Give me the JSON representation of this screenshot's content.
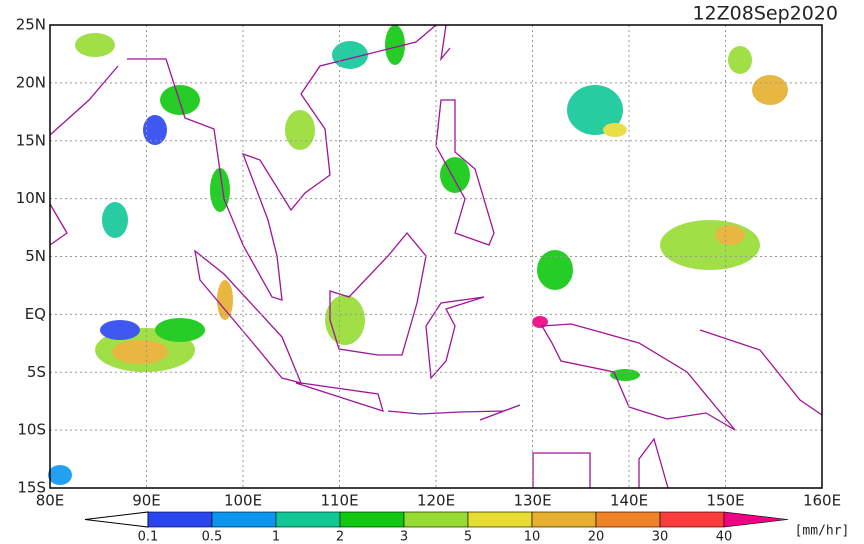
{
  "title": "12Z08Sep2020",
  "map": {
    "x_labels": [
      "80E",
      "90E",
      "100E",
      "110E",
      "120E",
      "130E",
      "140E",
      "150E",
      "160E"
    ],
    "y_labels": [
      "25N",
      "20N",
      "15N",
      "10N",
      "5N",
      "EQ",
      "5S",
      "10S",
      "15S"
    ]
  },
  "colorbar": {
    "labels": [
      "0.1",
      "0.5",
      "1",
      "2",
      "3",
      "5",
      "10",
      "20",
      "30",
      "40"
    ],
    "colors": [
      "#2a46f0",
      "#0a96f0",
      "#10c896",
      "#10c810",
      "#96dc32",
      "#e6dc32",
      "#e6af2d",
      "#f08228",
      "#fa3c3c",
      "#f00082"
    ],
    "unit": "[mm/hr]"
  }
}
